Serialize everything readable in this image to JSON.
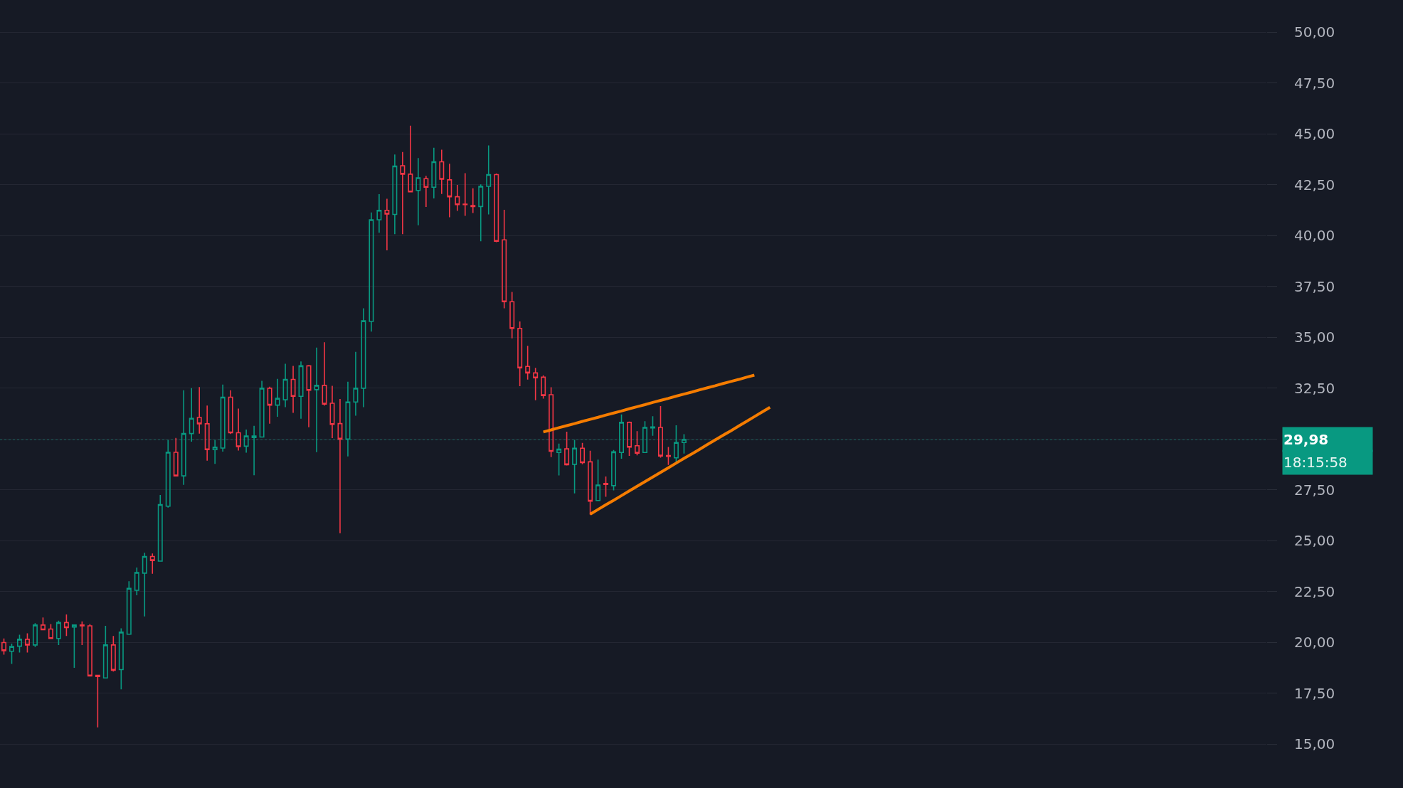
{
  "chart_data": {
    "type": "candlestick",
    "categories": [
      null,
      null,
      null,
      null,
      null,
      null,
      null,
      null,
      null,
      null,
      null,
      null,
      null,
      null,
      null,
      null,
      null,
      null,
      null,
      null,
      null,
      null,
      null,
      null,
      null,
      null,
      null,
      null,
      null,
      null,
      null,
      null,
      null,
      null,
      null,
      null,
      null,
      null,
      null,
      null,
      null,
      null,
      null,
      null,
      null,
      null,
      null,
      null,
      null,
      null,
      null,
      null,
      null,
      null,
      null,
      null,
      null,
      null,
      null,
      null,
      null,
      null,
      null,
      null,
      null,
      null,
      null,
      null,
      null,
      null,
      null,
      null,
      null,
      null,
      null,
      null,
      null,
      null,
      null,
      null,
      null,
      null,
      null,
      null,
      null,
      null,
      null,
      null,
      null,
      null,
      null,
      null,
      null,
      null,
      null,
      null,
      null,
      null,
      null,
      null,
      null,
      null,
      null,
      null,
      null,
      null,
      null,
      null,
      null,
      null,
      null,
      null,
      null,
      null,
      null,
      null,
      null,
      null,
      null,
      null,
      null,
      null,
      null,
      null,
      null,
      null,
      null,
      null,
      null,
      null,
      null,
      null,
      null,
      null,
      null,
      null,
      null,
      null,
      null,
      null,
      null,
      null,
      null,
      null,
      null,
      null,
      null,
      null,
      null,
      null,
      null,
      null,
      null,
      null,
      null,
      null,
      null,
      null,
      null,
      null,
      null,
      null
    ],
    "ohlc": [
      [
        20.0,
        20.2,
        19.4,
        19.6
      ],
      [
        19.57,
        19.95,
        18.95,
        19.8
      ],
      [
        19.82,
        20.38,
        19.51,
        20.16
      ],
      [
        20.16,
        20.45,
        19.51,
        19.88
      ],
      [
        19.88,
        20.95,
        19.78,
        20.86
      ],
      [
        20.86,
        21.23,
        20.63,
        20.63
      ],
      [
        20.66,
        20.91,
        20.2,
        20.2
      ],
      [
        20.2,
        21.07,
        19.88,
        20.98
      ],
      [
        20.98,
        21.38,
        20.32,
        20.73
      ],
      [
        20.76,
        20.86,
        18.76,
        20.86
      ],
      [
        20.86,
        21.04,
        19.88,
        20.82
      ],
      [
        20.82,
        20.91,
        18.36,
        18.36
      ],
      [
        18.39,
        18.41,
        15.83,
        18.33
      ],
      [
        18.26,
        20.82,
        18.26,
        19.88
      ],
      [
        19.88,
        20.32,
        18.57,
        18.64
      ],
      [
        18.67,
        20.7,
        17.7,
        20.51
      ],
      [
        20.41,
        23.01,
        20.38,
        22.66
      ],
      [
        22.57,
        23.69,
        22.32,
        23.44
      ],
      [
        23.41,
        24.41,
        21.28,
        24.23
      ],
      [
        24.23,
        24.38,
        23.38,
        24.03
      ],
      [
        24.0,
        27.25,
        24.0,
        26.78
      ],
      [
        26.7,
        29.94,
        26.63,
        29.35
      ],
      [
        29.35,
        30.06,
        28.19,
        28.19
      ],
      [
        28.19,
        32.4,
        27.75,
        30.27
      ],
      [
        30.27,
        32.5,
        29.87,
        31.02
      ],
      [
        31.06,
        32.56,
        30.27,
        30.75
      ],
      [
        30.75,
        31.65,
        28.94,
        29.48
      ],
      [
        29.48,
        29.94,
        28.78,
        29.6
      ],
      [
        29.56,
        32.68,
        29.38,
        32.06
      ],
      [
        32.06,
        32.4,
        30.25,
        30.31
      ],
      [
        30.31,
        31.5,
        29.44,
        29.63
      ],
      [
        29.65,
        30.47,
        29.33,
        30.15
      ],
      [
        30.08,
        30.65,
        28.22,
        30.15
      ],
      [
        30.1,
        32.86,
        30.1,
        32.5
      ],
      [
        32.5,
        32.57,
        30.76,
        31.67
      ],
      [
        31.67,
        32.96,
        31.1,
        32.0
      ],
      [
        31.93,
        33.7,
        31.57,
        32.93
      ],
      [
        32.93,
        33.6,
        31.29,
        32.1
      ],
      [
        32.1,
        33.81,
        31.0,
        33.6
      ],
      [
        33.6,
        33.64,
        30.58,
        32.4
      ],
      [
        32.43,
        34.5,
        29.36,
        32.64
      ],
      [
        32.64,
        34.76,
        31.65,
        31.72
      ],
      [
        31.76,
        32.62,
        30.05,
        30.72
      ],
      [
        30.76,
        31.97,
        25.37,
        30.0
      ],
      [
        30.0,
        32.82,
        29.15,
        31.82
      ],
      [
        31.82,
        34.29,
        31.15,
        32.5
      ],
      [
        32.5,
        36.43,
        31.57,
        35.81
      ],
      [
        35.78,
        41.14,
        35.28,
        40.78
      ],
      [
        40.78,
        42.04,
        40.14,
        41.24
      ],
      [
        41.24,
        41.81,
        39.28,
        41.06
      ],
      [
        41.04,
        43.99,
        40.07,
        43.42
      ],
      [
        43.43,
        44.11,
        40.07,
        43.02
      ],
      [
        43.02,
        45.4,
        42.15,
        42.15
      ],
      [
        42.22,
        43.81,
        40.51,
        42.84
      ],
      [
        42.8,
        42.94,
        41.41,
        42.38
      ],
      [
        42.38,
        44.32,
        41.83,
        43.63
      ],
      [
        43.63,
        44.22,
        42.05,
        42.77
      ],
      [
        42.74,
        43.53,
        40.9,
        41.91
      ],
      [
        41.91,
        42.49,
        41.22,
        41.52
      ],
      [
        41.55,
        43.07,
        40.97,
        41.52
      ],
      [
        41.48,
        42.33,
        41.11,
        41.43
      ],
      [
        41.43,
        42.52,
        39.72,
        42.42
      ],
      [
        42.42,
        44.43,
        41.04,
        43.0
      ],
      [
        43.0,
        43.05,
        39.68,
        39.72
      ],
      [
        39.79,
        41.27,
        36.43,
        36.75
      ],
      [
        36.75,
        37.23,
        34.95,
        35.44
      ],
      [
        35.44,
        35.78,
        32.6,
        33.5
      ],
      [
        33.57,
        34.58,
        32.92,
        33.25
      ],
      [
        33.25,
        33.5,
        31.91,
        33.01
      ],
      [
        33.04,
        33.13,
        31.99,
        32.14
      ],
      [
        32.18,
        32.55,
        29.11,
        29.4
      ],
      [
        29.34,
        29.78,
        28.21,
        29.5
      ],
      [
        29.52,
        30.36,
        28.7,
        28.74
      ],
      [
        28.76,
        29.96,
        27.33,
        29.55
      ],
      [
        29.55,
        29.81,
        28.76,
        28.84
      ],
      [
        28.88,
        29.43,
        26.28,
        26.95
      ],
      [
        26.98,
        28.99,
        26.98,
        27.74
      ],
      [
        27.82,
        28.16,
        27.16,
        27.77
      ],
      [
        27.71,
        29.46,
        27.48,
        29.37
      ],
      [
        29.34,
        31.21,
        29.03,
        30.82
      ],
      [
        30.82,
        30.86,
        29.17,
        29.6
      ],
      [
        29.67,
        30.39,
        29.2,
        29.31
      ],
      [
        29.34,
        30.88,
        29.34,
        30.57
      ],
      [
        30.55,
        31.12,
        30.16,
        30.6
      ],
      [
        30.57,
        31.62,
        29.09,
        29.17
      ],
      [
        29.19,
        29.61,
        28.73,
        29.15
      ],
      [
        29.08,
        30.68,
        28.88,
        29.83
      ],
      [
        29.83,
        30.24,
        29.29,
        29.98
      ],
      null,
      null,
      null,
      null,
      null,
      null,
      null,
      null,
      null,
      null,
      null,
      null,
      null,
      null,
      null,
      null,
      null,
      null,
      null,
      null,
      null,
      null,
      null,
      null,
      null,
      null,
      null,
      null,
      null,
      null,
      null,
      null,
      null,
      null,
      null,
      null,
      null,
      null,
      null,
      null,
      null,
      null,
      null,
      null,
      null,
      null,
      null,
      null,
      null,
      null,
      null,
      null,
      null,
      null,
      null,
      null,
      null,
      null,
      null,
      null,
      null,
      null,
      null,
      null,
      null,
      null,
      null,
      null,
      null,
      null,
      null,
      null,
      null,
      null
    ],
    "colors": [
      "#f23645",
      "#089981",
      "#089981",
      "#f23645",
      "#089981",
      "#f23645",
      "#f23645",
      "#089981",
      "#f23645",
      "#089981",
      "#f23645",
      "#f23645",
      "#f23645",
      "#089981",
      "#f23645",
      "#089981",
      "#089981",
      "#089981",
      "#089981",
      "#f23645",
      "#089981",
      "#089981",
      "#f23645",
      "#089981",
      "#089981",
      "#f23645",
      "#f23645",
      "#089981",
      "#089981",
      "#f23645",
      "#f23645",
      "#089981",
      "#089981",
      "#089981",
      "#f23645",
      "#089981",
      "#089981",
      "#f23645",
      "#089981",
      "#f23645",
      "#089981",
      "#f23645",
      "#f23645",
      "#f23645",
      "#089981",
      "#089981",
      "#089981",
      "#089981",
      "#089981",
      "#f23645",
      "#089981",
      "#f23645",
      "#f23645",
      "#089981",
      "#f23645",
      "#089981",
      "#f23645",
      "#f23645",
      "#f23645",
      "#f23645",
      "#f23645",
      "#089981",
      "#089981",
      "#f23645",
      "#f23645",
      "#f23645",
      "#f23645",
      "#f23645",
      "#f23645",
      "#f23645",
      "#f23645",
      "#089981",
      "#f23645",
      "#089981",
      "#f23645",
      "#f23645",
      "#089981",
      "#f23645",
      "#089981",
      "#089981",
      "#f23645",
      "#f23645",
      "#089981",
      "#089981",
      "#f23645",
      "#f23645",
      "#089981",
      "#089981",
      null,
      null,
      null,
      null,
      null,
      null,
      null,
      null,
      null,
      null,
      null,
      null,
      null,
      null,
      null,
      null,
      null,
      null,
      null,
      null,
      null,
      null,
      null,
      null,
      null,
      null,
      null,
      null,
      null,
      null,
      null,
      null,
      null,
      null,
      null,
      null,
      null,
      null,
      null,
      null,
      null,
      null,
      null,
      null,
      null,
      null,
      null,
      null,
      null,
      null,
      null,
      null,
      null,
      null,
      null,
      null,
      null,
      null,
      null,
      null,
      null,
      null,
      null,
      null,
      null,
      null,
      null,
      null,
      null,
      null,
      null,
      null,
      null,
      null
    ],
    "series": [
      {
        "type": "line",
        "color": "#f57c00",
        "values": [
          null,
          null,
          null,
          null,
          null,
          null,
          null,
          null,
          null,
          null,
          null,
          null,
          null,
          null,
          null,
          null,
          null,
          null,
          null,
          null,
          null,
          null,
          null,
          null,
          null,
          null,
          null,
          null,
          null,
          null,
          null,
          null,
          null,
          null,
          null,
          null,
          null,
          null,
          null,
          null,
          null,
          null,
          null,
          null,
          null,
          null,
          null,
          null,
          null,
          null,
          null,
          null,
          null,
          null,
          null,
          null,
          null,
          null,
          null,
          null,
          null,
          null,
          null,
          null,
          null,
          null,
          null,
          null,
          null,
          30.35,
          30.45,
          30.56,
          30.66,
          30.76,
          30.87,
          30.97,
          31.07,
          31.18,
          31.28,
          31.38,
          31.49,
          31.59,
          31.69,
          31.8,
          31.9,
          32.0,
          32.11,
          32.21,
          32.31,
          32.42,
          32.52,
          32.62,
          32.73,
          32.83,
          32.93,
          33.04,
          33.14,
          null,
          null,
          null,
          null,
          null,
          null,
          null,
          null,
          null,
          null,
          null,
          null,
          null,
          null,
          null,
          null,
          null,
          null,
          null,
          null,
          null,
          null,
          null,
          null,
          null,
          null,
          null,
          null,
          null,
          null,
          null,
          null,
          null,
          null,
          null,
          null,
          null,
          null,
          null,
          null,
          null,
          null,
          null,
          null,
          null,
          null,
          null,
          null,
          null,
          null,
          null,
          null,
          null,
          null,
          null,
          null,
          null,
          null,
          null,
          null,
          null,
          null,
          null,
          null,
          null
        ]
      },
      {
        "type": "line",
        "color": "#f57c00",
        "values": [
          null,
          null,
          null,
          null,
          null,
          null,
          null,
          null,
          null,
          null,
          null,
          null,
          null,
          null,
          null,
          null,
          null,
          null,
          null,
          null,
          null,
          null,
          null,
          null,
          null,
          null,
          null,
          null,
          null,
          null,
          null,
          null,
          null,
          null,
          null,
          null,
          null,
          null,
          null,
          null,
          null,
          null,
          null,
          null,
          null,
          null,
          null,
          null,
          null,
          null,
          null,
          null,
          null,
          null,
          null,
          null,
          null,
          null,
          null,
          null,
          null,
          null,
          null,
          null,
          null,
          null,
          null,
          null,
          null,
          null,
          null,
          null,
          null,
          null,
          null,
          26.31,
          26.54,
          26.77,
          26.99,
          27.22,
          27.45,
          27.68,
          27.91,
          28.13,
          28.36,
          28.59,
          28.82,
          29.05,
          29.27,
          29.5,
          29.73,
          29.96,
          30.19,
          30.41,
          30.64,
          30.87,
          31.1,
          31.33,
          31.56,
          null,
          null,
          null,
          null,
          null,
          null,
          null,
          null,
          null,
          null,
          null,
          null,
          null,
          null,
          null,
          null,
          null,
          null,
          null,
          null,
          null,
          null,
          null,
          null,
          null,
          null,
          null,
          null,
          null,
          null,
          null,
          null,
          null,
          null,
          null,
          null,
          null,
          null,
          null,
          null,
          null,
          null,
          null,
          null,
          null,
          null,
          null,
          null,
          null,
          null,
          null,
          null,
          null,
          null,
          null,
          null,
          null,
          null,
          null,
          null,
          null,
          null,
          null
        ]
      }
    ],
    "ylim": [
      12.85,
      51.58
    ],
    "yticks": [
      {
        "value": 15,
        "label": "15,00"
      },
      {
        "value": 17.5,
        "label": "17,50"
      },
      {
        "value": 20,
        "label": "20,00"
      },
      {
        "value": 22.5,
        "label": "22,50"
      },
      {
        "value": 25,
        "label": "25,00"
      },
      {
        "value": 27.5,
        "label": "27,50"
      },
      {
        "value": 30,
        "label": null
      },
      {
        "value": 32.5,
        "label": "32,50"
      },
      {
        "value": 35,
        "label": "35,00"
      },
      {
        "value": 37.5,
        "label": "37,50"
      },
      {
        "value": 40,
        "label": "40,00"
      },
      {
        "value": 42.5,
        "label": "42,50"
      },
      {
        "value": 45,
        "label": "45,00"
      },
      {
        "value": 47.5,
        "label": "47,50"
      },
      {
        "value": 50,
        "label": "50,00"
      }
    ],
    "ref_lines": [
      {
        "axis": "y",
        "value": 29.98,
        "label": "29,98",
        "color": "#089981",
        "line_style": "dotted"
      }
    ],
    "annotations": [
      "18:15:58"
    ],
    "grid": "y",
    "tick_labels": "y",
    "marker": "none"
  }
}
